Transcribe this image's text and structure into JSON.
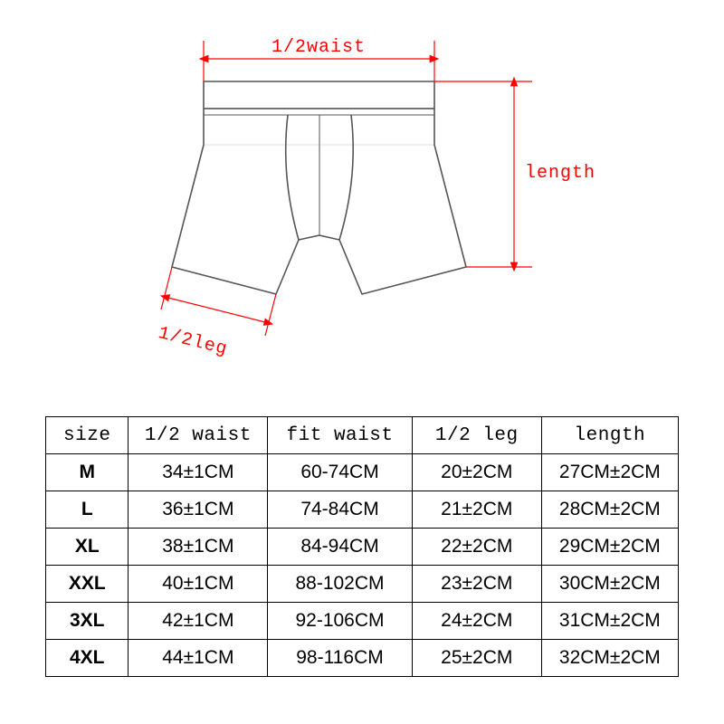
{
  "diagram": {
    "labels": {
      "waist": "1/2waist",
      "length": "length",
      "leg": "1/2leg"
    },
    "colors": {
      "dim_line": "#ff0000",
      "dim_text": "#ff0000",
      "garment_stroke": "#555555",
      "garment_fill": "#ffffff",
      "background": "#ffffff"
    },
    "stroke_width": 1.6,
    "dim_fontsize": 20
  },
  "table": {
    "columns": [
      "size",
      "1/2 waist",
      "fit waist",
      "1/2 leg",
      "length"
    ],
    "rows": [
      [
        "M",
        "34±1CM",
        "60-74CM",
        "20±2CM",
        "27CM±2CM"
      ],
      [
        "L",
        "36±1CM",
        "74-84CM",
        "21±2CM",
        "28CM±2CM"
      ],
      [
        "XL",
        "38±1CM",
        "84-94CM",
        "22±2CM",
        "29CM±2CM"
      ],
      [
        "XXL",
        "40±1CM",
        "88-102CM",
        "23±2CM",
        "30CM±2CM"
      ],
      [
        "3XL",
        "42±1CM",
        "92-106CM",
        "24±2CM",
        "31CM±2CM"
      ],
      [
        "4XL",
        "44±1CM",
        "98-116CM",
        "25±2CM",
        "32CM±2CM"
      ]
    ],
    "border_color": "#000000",
    "font_size": 21
  }
}
